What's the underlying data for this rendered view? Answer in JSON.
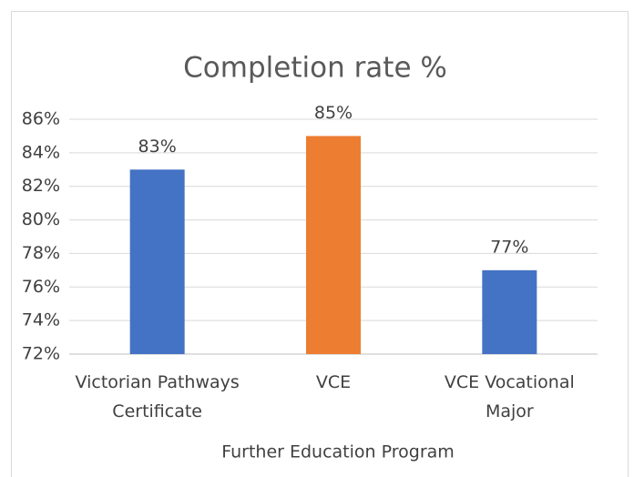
{
  "chart_data": {
    "type": "bar",
    "title": "Completion rate %",
    "x_label": "Further Education Program",
    "categories": [
      "Victorian Pathways Certificate",
      "VCE",
      "VCE Vocational Major"
    ],
    "values": [
      83,
      85,
      77
    ],
    "value_labels": [
      "83%",
      "85%",
      "77%"
    ],
    "colors": [
      "#4472c4",
      "#ed7d31",
      "#4472c4"
    ],
    "ylim": [
      72,
      86
    ],
    "yticks": [
      {
        "value": 72,
        "label": "72%"
      },
      {
        "value": 74,
        "label": "74%"
      },
      {
        "value": 76,
        "label": "76%"
      },
      {
        "value": 78,
        "label": "78%"
      },
      {
        "value": 80,
        "label": "80%"
      },
      {
        "value": 82,
        "label": "82%"
      },
      {
        "value": 84,
        "label": "84%"
      },
      {
        "value": 86,
        "label": "86%"
      }
    ],
    "grid": true
  }
}
